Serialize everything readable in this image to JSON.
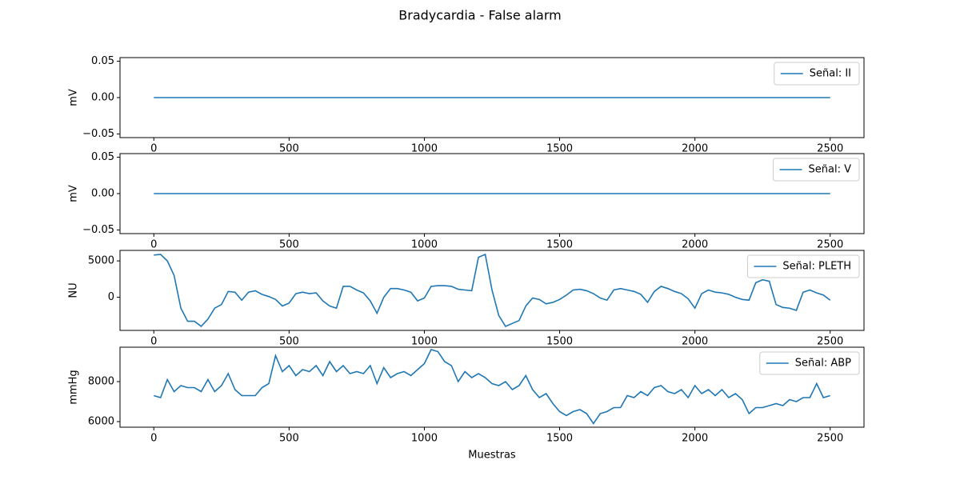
{
  "title": "Bradycardia - False alarm",
  "chart_data": [
    {
      "type": "line",
      "ylabel": "mV",
      "x": [
        0,
        2500
      ],
      "series": [
        {
          "name": "Señal: II",
          "color": "#1f77b4",
          "values": [
            0,
            0
          ]
        }
      ],
      "xlim": [
        -125,
        2625
      ],
      "xticks": [
        0,
        500,
        1000,
        1500,
        2000,
        2500
      ],
      "ylim": [
        -0.055,
        0.055
      ],
      "yticks": [
        {
          "value": -0.05,
          "label": "−0.05"
        },
        {
          "value": 0,
          "label": "0.00"
        },
        {
          "value": 0.05,
          "label": "0.05"
        }
      ],
      "legend": "upper right"
    },
    {
      "type": "line",
      "ylabel": "mV",
      "x": [
        0,
        2500
      ],
      "series": [
        {
          "name": "Señal: V",
          "color": "#1f77b4",
          "values": [
            0,
            0
          ]
        }
      ],
      "xlim": [
        -125,
        2625
      ],
      "xticks": [
        0,
        500,
        1000,
        1500,
        2000,
        2500
      ],
      "ylim": [
        -0.055,
        0.055
      ],
      "yticks": [
        {
          "value": -0.05,
          "label": "−0.05"
        },
        {
          "value": 0,
          "label": "0.00"
        },
        {
          "value": 0.05,
          "label": "0.05"
        }
      ],
      "legend": "upper right"
    },
    {
      "type": "line",
      "ylabel": "NU",
      "x": [
        0,
        25,
        50,
        75,
        100,
        125,
        150,
        175,
        200,
        225,
        250,
        275,
        300,
        325,
        350,
        375,
        400,
        425,
        450,
        475,
        500,
        525,
        550,
        575,
        600,
        625,
        650,
        675,
        700,
        725,
        750,
        775,
        800,
        825,
        850,
        875,
        900,
        925,
        950,
        975,
        1000,
        1025,
        1050,
        1075,
        1100,
        1125,
        1150,
        1175,
        1200,
        1225,
        1250,
        1275,
        1300,
        1325,
        1350,
        1375,
        1400,
        1425,
        1450,
        1475,
        1500,
        1525,
        1550,
        1575,
        1600,
        1625,
        1650,
        1675,
        1700,
        1725,
        1750,
        1775,
        1800,
        1825,
        1850,
        1875,
        1900,
        1925,
        1950,
        1975,
        2000,
        2025,
        2050,
        2075,
        2100,
        2125,
        2150,
        2175,
        2200,
        2225,
        2250,
        2275,
        2300,
        2325,
        2350,
        2375,
        2400,
        2425,
        2450,
        2475,
        2500
      ],
      "series": [
        {
          "name": "Señal: PLETH",
          "color": "#1f77b4",
          "values": [
            5800,
            5900,
            5000,
            3000,
            -1500,
            -3300,
            -3300,
            -4000,
            -3000,
            -1500,
            -1000,
            800,
            700,
            -400,
            700,
            900,
            400,
            100,
            -300,
            -1200,
            -800,
            500,
            700,
            500,
            600,
            -500,
            -1200,
            -1500,
            1500,
            1500,
            1000,
            600,
            -500,
            -2200,
            0,
            1200,
            1200,
            1000,
            700,
            -500,
            -100,
            1500,
            1600,
            1600,
            1500,
            1100,
            1000,
            900,
            5500,
            5900,
            1000,
            -2500,
            -4000,
            -3600,
            -3200,
            -1200,
            -100,
            -300,
            -900,
            -700,
            -300,
            300,
            1000,
            1100,
            900,
            500,
            -100,
            -400,
            1000,
            1200,
            1000,
            800,
            400,
            -700,
            800,
            1500,
            1200,
            800,
            500,
            -200,
            -1500,
            500,
            1000,
            700,
            600,
            400,
            0,
            -300,
            -400,
            2000,
            2400,
            2200,
            -1000,
            -1400,
            -1500,
            -1800,
            700,
            1000,
            600,
            300,
            -400
          ]
        }
      ],
      "xlim": [
        -125,
        2625
      ],
      "xticks": [
        0,
        500,
        1000,
        1500,
        2000,
        2500
      ],
      "ylim": [
        -4555,
        6445
      ],
      "yticks": [
        0,
        5000
      ],
      "legend": "upper right"
    },
    {
      "type": "line",
      "ylabel": "mmHg",
      "xlabel": "Muestras",
      "x": [
        0,
        25,
        50,
        75,
        100,
        125,
        150,
        175,
        200,
        225,
        250,
        275,
        300,
        325,
        350,
        375,
        400,
        425,
        450,
        475,
        500,
        525,
        550,
        575,
        600,
        625,
        650,
        675,
        700,
        725,
        750,
        775,
        800,
        825,
        850,
        875,
        900,
        925,
        950,
        975,
        1000,
        1025,
        1050,
        1075,
        1100,
        1125,
        1150,
        1175,
        1200,
        1225,
        1250,
        1275,
        1300,
        1325,
        1350,
        1375,
        1400,
        1425,
        1450,
        1475,
        1500,
        1525,
        1550,
        1575,
        1600,
        1625,
        1650,
        1675,
        1700,
        1725,
        1750,
        1775,
        1800,
        1825,
        1850,
        1875,
        1900,
        1925,
        1950,
        1975,
        2000,
        2025,
        2050,
        2075,
        2100,
        2125,
        2150,
        2175,
        2200,
        2225,
        2250,
        2275,
        2300,
        2325,
        2350,
        2375,
        2400,
        2425,
        2450,
        2475,
        2500
      ],
      "series": [
        {
          "name": "Señal: ABP",
          "color": "#1f77b4",
          "values": [
            7300,
            7200,
            8100,
            7500,
            7800,
            7700,
            7700,
            7500,
            8100,
            7500,
            7800,
            8400,
            7600,
            7300,
            7300,
            7300,
            7700,
            7900,
            9300,
            8500,
            8800,
            8300,
            8600,
            8500,
            8800,
            8300,
            9000,
            8500,
            8800,
            8400,
            8500,
            8400,
            8800,
            7900,
            8700,
            8200,
            8400,
            8500,
            8300,
            8600,
            8900,
            9600,
            9500,
            9000,
            8800,
            8000,
            8500,
            8200,
            8400,
            8200,
            7900,
            7800,
            8000,
            7600,
            7800,
            8300,
            7600,
            7200,
            7400,
            6900,
            6500,
            6300,
            6500,
            6600,
            6400,
            5900,
            6400,
            6500,
            6700,
            6700,
            7300,
            7200,
            7500,
            7300,
            7700,
            7800,
            7500,
            7400,
            7600,
            7200,
            7800,
            7400,
            7600,
            7300,
            7600,
            7200,
            7400,
            7100,
            6400,
            6700,
            6700,
            6800,
            6900,
            6800,
            7100,
            7000,
            7200,
            7200,
            7900,
            7200,
            7300
          ]
        }
      ],
      "xlim": [
        -125,
        2625
      ],
      "xticks": [
        0,
        500,
        1000,
        1500,
        2000,
        2500
      ],
      "ylim": [
        5720,
        9720
      ],
      "yticks": [
        6000,
        8000
      ],
      "legend": "upper right"
    }
  ]
}
